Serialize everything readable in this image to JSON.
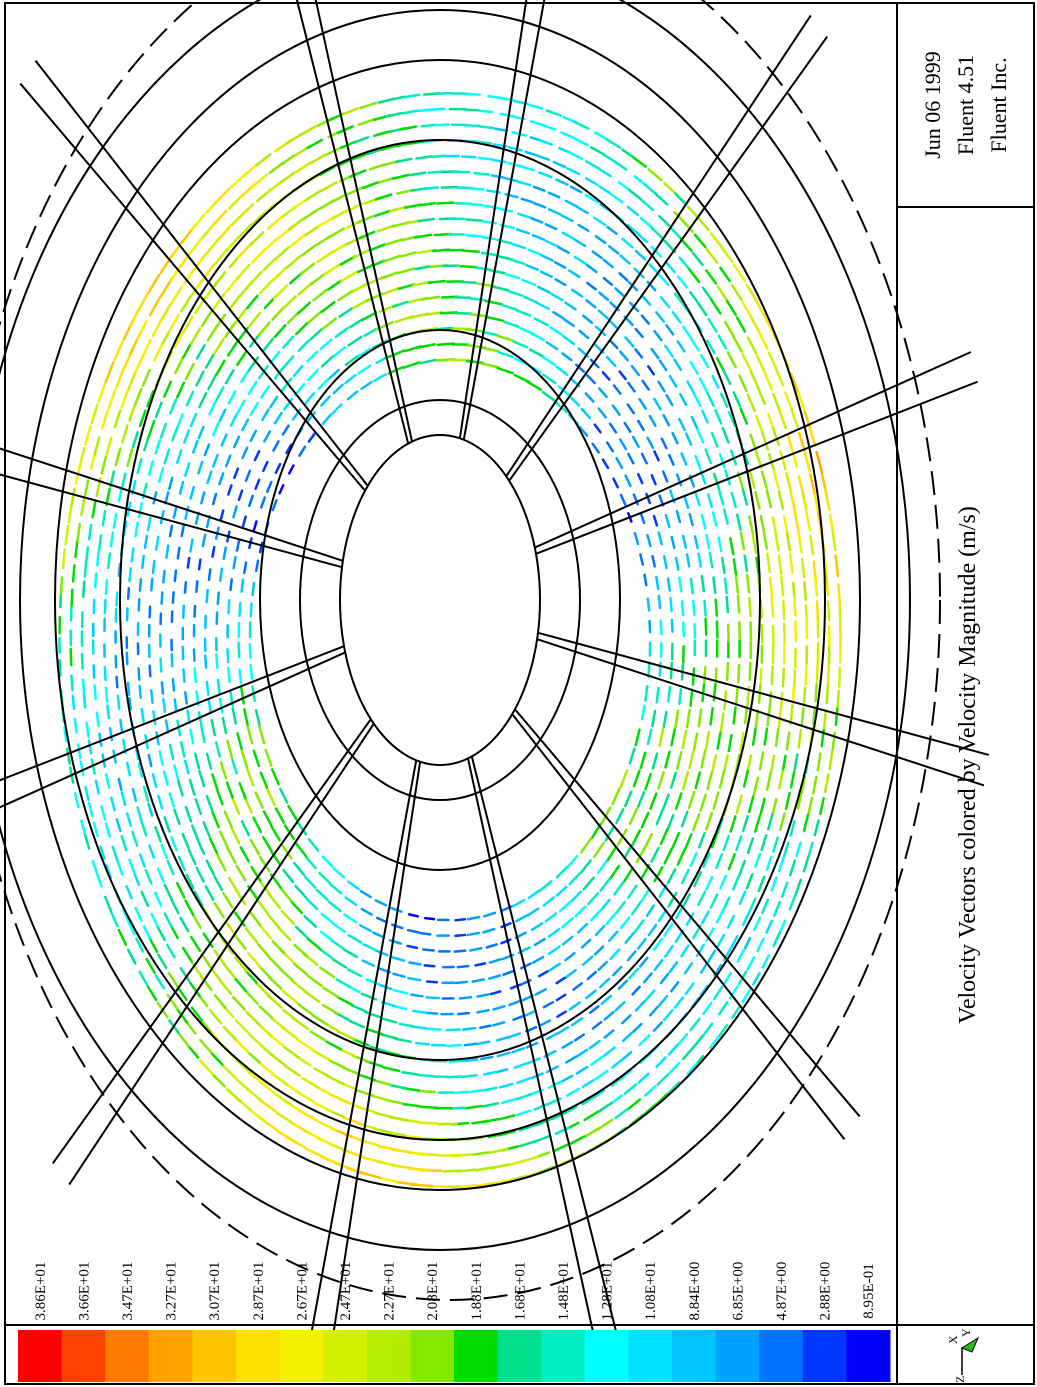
{
  "colorbar": {
    "labels": [
      "3.86E+01",
      "3.66E+01",
      "3.47E+01",
      "3.27E+01",
      "3.07E+01",
      "2.87E+01",
      "2.67E+01",
      "2.47E+01",
      "2.27E+01",
      "2.08E+01",
      "1.88E+01",
      "1.68E+01",
      "1.48E+01",
      "1.28E+01",
      "1.08E+01",
      "8.84E+00",
      "6.85E+00",
      "4.87E+00",
      "2.88E+00",
      "8.95E-01"
    ],
    "colors": [
      "#ff0000",
      "#ff4400",
      "#ff7a00",
      "#ffa200",
      "#ffc400",
      "#ffe000",
      "#f2f200",
      "#d4f000",
      "#b4ec00",
      "#84e800",
      "#00dc00",
      "#00e08c",
      "#00eec4",
      "#00ffff",
      "#00e2ff",
      "#00c4ff",
      "#00a2ff",
      "#0074ff",
      "#0038ff",
      "#0000ff"
    ]
  },
  "info": {
    "date": "Jun 06 1999",
    "version": "Fluent 4.51",
    "company": "Fluent Inc."
  },
  "title": "Velocity Vectors colored by Velocity Magnitude (m/s)",
  "axes": {
    "x": "X",
    "y": "Y",
    "z": "Z"
  }
}
